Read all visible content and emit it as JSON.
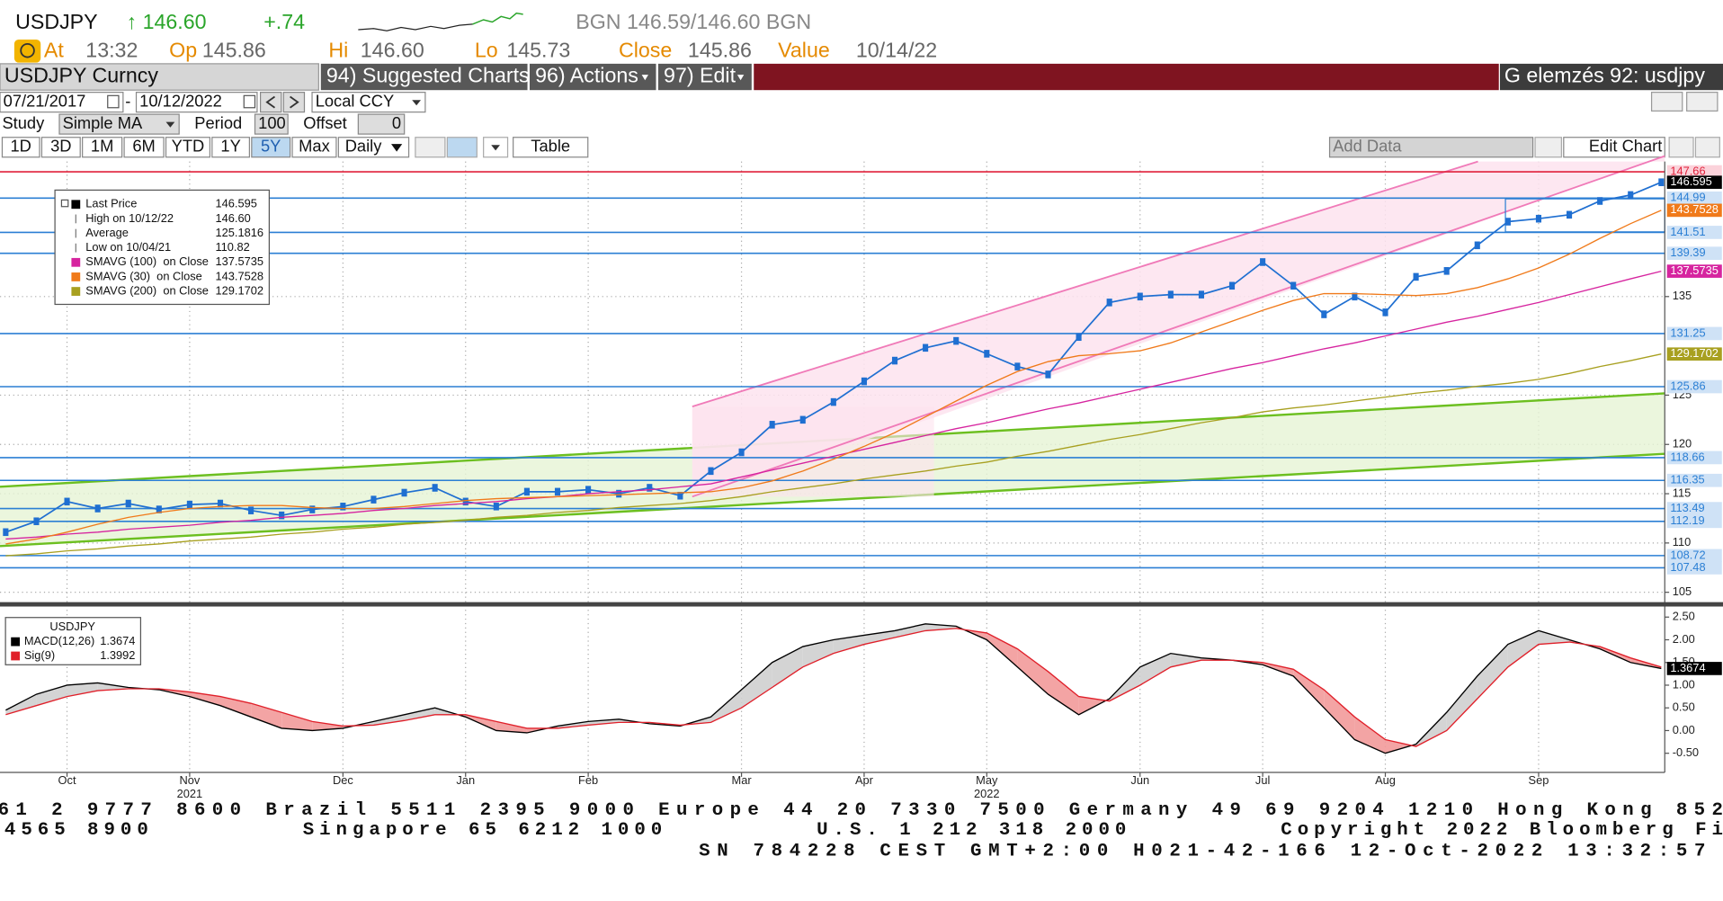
{
  "header": {
    "ticker": "USDJPY",
    "price": "↑ 146.60",
    "change": "+.74",
    "quote": "BGN 146.59/146.60 BGN",
    "fields": [
      {
        "label": "At",
        "value": "13:32"
      },
      {
        "label": "Op",
        "value": "145.86"
      },
      {
        "label": "Hi",
        "value": "146.60"
      },
      {
        "label": "Lo",
        "value": "145.73"
      },
      {
        "label": "Close",
        "value": "145.86"
      },
      {
        "label": "Value",
        "value": "10/14/22"
      }
    ]
  },
  "toolbar": {
    "security": "USDJPY Curncy",
    "menus": [
      "94) Suggested Charts",
      "96) Actions",
      "97) Edit"
    ],
    "banner": "G elemzés 92: usdjpy",
    "start_date": "07/21/2017",
    "date_separator": "-",
    "end_date": "10/12/2022",
    "currency": "Local CCY",
    "study_label": "Study",
    "study": "Simple MA",
    "period_label": "Period",
    "period": "100",
    "offset_label": "Offset",
    "offset": "0",
    "ranges": [
      "1D",
      "3D",
      "1M",
      "6M",
      "YTD",
      "1Y",
      "5Y",
      "Max"
    ],
    "active_range": "5Y",
    "frequency": "Daily",
    "table": "Table",
    "add_data": "Add Data",
    "edit_chart": "Edit Chart"
  },
  "chart_data": [
    {
      "type": "line",
      "grid": true,
      "categories": [
        null,
        null,
        "Oct",
        null,
        null,
        null,
        "Nov",
        null,
        null,
        null,
        null,
        "Dec",
        null,
        null,
        null,
        "Jan",
        null,
        null,
        null,
        "Feb",
        null,
        null,
        null,
        null,
        "Mar",
        null,
        null,
        null,
        "Apr",
        null,
        null,
        null,
        "May",
        null,
        null,
        null,
        null,
        "Jun",
        null,
        null,
        null,
        "Jul",
        null,
        null,
        null,
        "Aug",
        null,
        null,
        null,
        null,
        "Sep",
        null,
        null,
        null,
        null
      ],
      "years": [
        null,
        null,
        null,
        null,
        null,
        null,
        "2021",
        null,
        null,
        null,
        null,
        null,
        null,
        null,
        null,
        null,
        null,
        null,
        null,
        null,
        null,
        null,
        null,
        null,
        null,
        null,
        null,
        null,
        null,
        null,
        null,
        null,
        "2022",
        null,
        null,
        null,
        null,
        null,
        null,
        null,
        null,
        null,
        null,
        null,
        null,
        null,
        null,
        null,
        null,
        null,
        null,
        null,
        null,
        null,
        null
      ],
      "ylim": [
        104,
        148.7
      ],
      "yticks": [
        105,
        110,
        115,
        120,
        125,
        135
      ],
      "series": [
        {
          "name": "Last Price",
          "color": "#1f6fd1",
          "badge_color": "#000000",
          "values": [
            111.1,
            112.2,
            114.2,
            113.5,
            114.0,
            113.4,
            113.9,
            114.0,
            113.3,
            112.8,
            113.4,
            113.7,
            114.4,
            115.1,
            115.6,
            114.2,
            113.7,
            115.2,
            115.2,
            115.4,
            115.0,
            115.6,
            114.8,
            117.3,
            119.2,
            122.0,
            122.5,
            124.3,
            126.4,
            128.5,
            129.8,
            130.5,
            129.2,
            127.9,
            127.1,
            130.9,
            134.4,
            135.0,
            135.2,
            135.2,
            136.1,
            138.5,
            136.1,
            133.2,
            135.0,
            133.4,
            137.0,
            137.6,
            140.2,
            142.6,
            142.9,
            143.3,
            144.7,
            145.3,
            146.595
          ]
        },
        {
          "name": "SMAVG (100)  on Close",
          "color": "#d6249f",
          "values": [
            110.4,
            110.6,
            110.9,
            111.1,
            111.4,
            111.6,
            111.8,
            112.1,
            112.3,
            112.6,
            112.8,
            113.0,
            113.3,
            113.5,
            113.8,
            114.0,
            114.2,
            114.5,
            114.7,
            115.0,
            115.2,
            115.4,
            115.7,
            116.0,
            116.7,
            117.4,
            118.1,
            118.8,
            119.5,
            120.2,
            120.9,
            121.6,
            122.2,
            122.9,
            123.6,
            124.2,
            124.9,
            125.6,
            126.3,
            127.0,
            127.7,
            128.3,
            129.0,
            129.7,
            130.3,
            131.0,
            131.7,
            132.4,
            133.0,
            133.7,
            134.4,
            135.2,
            136.0,
            136.8,
            137.5735
          ]
        },
        {
          "name": "SMAVG (30)  on Close",
          "color": "#f07a1a",
          "values": [
            109.9,
            110.4,
            111.1,
            111.9,
            112.6,
            113.1,
            113.5,
            113.7,
            113.8,
            113.8,
            113.6,
            113.5,
            113.5,
            113.7,
            114.0,
            114.3,
            114.5,
            114.6,
            114.7,
            114.8,
            114.9,
            115.0,
            115.1,
            115.2,
            115.6,
            116.3,
            117.3,
            118.5,
            119.8,
            121.2,
            122.8,
            124.4,
            126.0,
            127.4,
            128.4,
            129.0,
            129.2,
            129.5,
            130.3,
            131.4,
            132.5,
            133.6,
            134.6,
            135.3,
            135.3,
            135.2,
            135.1,
            135.3,
            135.9,
            136.8,
            137.9,
            139.3,
            140.9,
            142.4,
            143.7528
          ]
        },
        {
          "name": "SMAVG (200)  on Close",
          "color": "#a8a020",
          "values": [
            108.7,
            108.9,
            109.2,
            109.4,
            109.7,
            109.9,
            110.2,
            110.4,
            110.6,
            110.9,
            111.1,
            111.4,
            111.6,
            111.9,
            112.1,
            112.3,
            112.6,
            112.8,
            113.1,
            113.3,
            113.6,
            113.8,
            114.0,
            114.3,
            114.7,
            115.2,
            115.6,
            116.0,
            116.5,
            116.9,
            117.3,
            117.8,
            118.2,
            118.8,
            119.3,
            119.9,
            120.5,
            121.0,
            121.6,
            122.2,
            122.7,
            123.3,
            123.7,
            124.0,
            124.4,
            124.8,
            125.2,
            125.5,
            125.9,
            126.2,
            126.6,
            127.2,
            127.9,
            128.5,
            129.1702
          ]
        }
      ],
      "stats": [
        {
          "name": "High on 10/12/22",
          "value": 146.6,
          "value_label": "146.60"
        },
        {
          "name": "Average",
          "value": 125.1816
        },
        {
          "name": "Low on 10/04/21",
          "value": 110.82
        }
      ],
      "levels": [
        {
          "value": 147.66,
          "color": "#e0203a"
        },
        {
          "value": 144.99,
          "color": "#2b7fd4"
        },
        {
          "value": 141.51,
          "color": "#2b7fd4"
        },
        {
          "value": 139.39,
          "color": "#2b7fd4"
        },
        {
          "value": 131.25,
          "color": "#2b7fd4"
        },
        {
          "value": 125.86,
          "color": "#2b7fd4"
        },
        {
          "value": 118.66,
          "color": "#2b7fd4"
        },
        {
          "value": 116.35,
          "color": "#2b7fd4"
        },
        {
          "value": 113.49,
          "color": "#2b7fd4"
        },
        {
          "value": 112.19,
          "color": "#2b7fd4"
        },
        {
          "value": 108.72,
          "color": "#2b7fd4"
        },
        {
          "value": 107.48,
          "color": "#2b7fd4"
        }
      ]
    },
    {
      "type": "line",
      "title": "USDJPY",
      "ylim": [
        -0.85,
        2.66
      ],
      "yticks": [
        {
          "value": 2.5,
          "label": "2.50"
        },
        {
          "value": 2,
          "label": "2.00"
        },
        {
          "value": 1.5,
          "label": "1.50"
        },
        {
          "value": 1,
          "label": "1.00"
        },
        {
          "value": 0.5,
          "label": "0.50"
        },
        {
          "value": 0,
          "label": "0.00"
        },
        {
          "value": -0.5,
          "label": "-0.50"
        }
      ],
      "fill_above": "#cfcfcf",
      "fill_below": "#f29a9a",
      "series": [
        {
          "name": "MACD(12,26)",
          "color": "#000000",
          "values": [
            0.45,
            0.8,
            1.0,
            1.05,
            0.95,
            0.9,
            0.75,
            0.55,
            0.3,
            0.05,
            0.0,
            0.05,
            0.2,
            0.35,
            0.5,
            0.3,
            0.0,
            -0.05,
            0.1,
            0.2,
            0.25,
            0.15,
            0.1,
            0.3,
            0.9,
            1.5,
            1.85,
            2.0,
            2.1,
            2.2,
            2.35,
            2.3,
            2.0,
            1.4,
            0.8,
            0.35,
            0.7,
            1.4,
            1.7,
            1.6,
            1.55,
            1.45,
            1.2,
            0.5,
            -0.2,
            -0.5,
            -0.3,
            0.4,
            1.2,
            1.9,
            2.2,
            2.0,
            1.8,
            1.5,
            1.3674
          ]
        },
        {
          "name": "Sig(9)",
          "color": "#e0202a",
          "values": [
            0.35,
            0.55,
            0.75,
            0.88,
            0.92,
            0.92,
            0.85,
            0.75,
            0.6,
            0.4,
            0.2,
            0.1,
            0.12,
            0.22,
            0.35,
            0.35,
            0.2,
            0.05,
            0.05,
            0.12,
            0.18,
            0.18,
            0.12,
            0.18,
            0.5,
            0.95,
            1.4,
            1.7,
            1.9,
            2.05,
            2.2,
            2.25,
            2.15,
            1.8,
            1.3,
            0.75,
            0.65,
            1.0,
            1.4,
            1.55,
            1.55,
            1.5,
            1.35,
            0.9,
            0.3,
            -0.2,
            -0.35,
            0.0,
            0.7,
            1.4,
            1.9,
            1.95,
            1.85,
            1.6,
            1.3992
          ]
        }
      ]
    }
  ],
  "footer": {
    "lines": [
      "61 2 9777 8600 Brazil 5511 2395 9000 Europe 44 20 7330 7500 Germany 49 69 9204 1210 Hong Kong 852",
      "4565 8900         Singapore 65 6212 1000         U.S. 1 212 318 2000         Copyright 2022 Bloomberg Fi",
      "SN 784228 CEST GMT+2:00 H021-42-166 12-Oct-2022 13:32:57"
    ]
  }
}
